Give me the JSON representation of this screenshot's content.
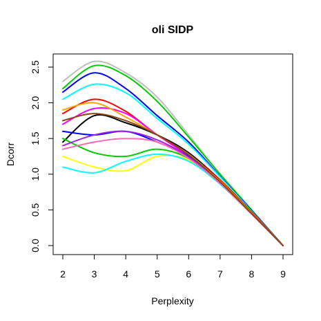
{
  "chart_data": {
    "type": "line",
    "title": "oli SIDP",
    "xlabel": "Perplexity",
    "ylabel": "Dcorr",
    "xlim": [
      2,
      9
    ],
    "ylim": [
      0,
      2.5
    ],
    "x_ticks": [
      2,
      3,
      4,
      5,
      6,
      7,
      8,
      9
    ],
    "x_tick_labels": [
      "2",
      "3",
      "4",
      "5",
      "6",
      "7",
      "8",
      "9"
    ],
    "y_ticks": [
      0,
      0.5,
      1,
      1.5,
      2,
      2.5
    ],
    "y_tick_labels": [
      "0.0",
      "0.5",
      "1.0",
      "1.5",
      "2.0",
      "2.5"
    ],
    "grid": false,
    "legend": "none",
    "series": [
      {
        "color": "#bebebe",
        "x": [
          2,
          3,
          4,
          5,
          6,
          7,
          8,
          9
        ],
        "values": [
          2.3,
          2.58,
          2.42,
          2.08,
          1.55,
          1.0,
          0.5,
          0.0
        ]
      },
      {
        "color": "#00cd00",
        "x": [
          2,
          3,
          4,
          5,
          6,
          7,
          8,
          9
        ],
        "values": [
          2.2,
          2.52,
          2.38,
          2.02,
          1.52,
          1.0,
          0.5,
          0.0
        ]
      },
      {
        "color": "#0000ff",
        "x": [
          2,
          3,
          4,
          5,
          6,
          7,
          8,
          9
        ],
        "values": [
          2.15,
          2.42,
          2.2,
          1.82,
          1.45,
          0.97,
          0.49,
          0.0
        ]
      },
      {
        "color": "#00ffff",
        "x": [
          2,
          3,
          4,
          5,
          6,
          7,
          8,
          9
        ],
        "values": [
          2.05,
          2.26,
          2.14,
          1.78,
          1.42,
          0.96,
          0.48,
          0.0
        ]
      },
      {
        "color": "#ff0000",
        "x": [
          2,
          3,
          4,
          5,
          6,
          7,
          8,
          9
        ],
        "values": [
          1.85,
          2.05,
          1.88,
          1.55,
          1.3,
          0.92,
          0.47,
          0.0
        ]
      },
      {
        "color": "#000000",
        "x": [
          2,
          3,
          4,
          5,
          6,
          7,
          8,
          9
        ],
        "values": [
          1.45,
          1.82,
          1.72,
          1.55,
          1.3,
          0.9,
          0.46,
          0.0
        ]
      },
      {
        "color": "#ffff00",
        "x": [
          2,
          3,
          4,
          5,
          6,
          7,
          8,
          9
        ],
        "values": [
          1.25,
          1.1,
          1.05,
          1.25,
          1.2,
          0.88,
          0.45,
          0.0
        ]
      },
      {
        "color": "#00ffff",
        "x": [
          2,
          3,
          4,
          5,
          6,
          7,
          8,
          9
        ],
        "values": [
          1.1,
          1.02,
          1.18,
          1.28,
          1.18,
          0.86,
          0.44,
          0.0
        ]
      },
      {
        "color": "#ff00ff",
        "x": [
          2,
          3,
          4,
          5,
          6,
          7,
          8,
          9
        ],
        "values": [
          1.7,
          1.92,
          1.85,
          1.55,
          1.25,
          0.88,
          0.45,
          0.0
        ]
      },
      {
        "color": "#00cd00",
        "x": [
          2,
          3,
          4,
          5,
          6,
          7,
          8,
          9
        ],
        "values": [
          1.5,
          1.3,
          1.25,
          1.35,
          1.22,
          0.88,
          0.45,
          0.0
        ]
      },
      {
        "color": "#0000ff",
        "x": [
          2,
          3,
          4,
          5,
          6,
          7,
          8,
          9
        ],
        "values": [
          1.6,
          1.55,
          1.6,
          1.45,
          1.25,
          0.89,
          0.45,
          0.0
        ]
      },
      {
        "color": "#ffa500",
        "x": [
          2,
          3,
          4,
          5,
          6,
          7,
          8,
          9
        ],
        "values": [
          1.9,
          2.0,
          1.8,
          1.55,
          1.28,
          0.9,
          0.46,
          0.0
        ]
      },
      {
        "color": "#a020f0",
        "x": [
          2,
          3,
          4,
          5,
          6,
          7,
          8,
          9
        ],
        "values": [
          1.4,
          1.55,
          1.6,
          1.48,
          1.24,
          0.88,
          0.45,
          0.0
        ]
      },
      {
        "color": "#ff69b4",
        "x": [
          2,
          3,
          4,
          5,
          6,
          7,
          8,
          9
        ],
        "values": [
          1.35,
          1.45,
          1.5,
          1.45,
          1.22,
          0.87,
          0.44,
          0.0
        ]
      },
      {
        "color": "#8b4513",
        "x": [
          2,
          3,
          4,
          5,
          6,
          7,
          8,
          9
        ],
        "values": [
          1.75,
          1.85,
          1.75,
          1.55,
          1.27,
          0.89,
          0.45,
          0.0
        ]
      }
    ]
  }
}
